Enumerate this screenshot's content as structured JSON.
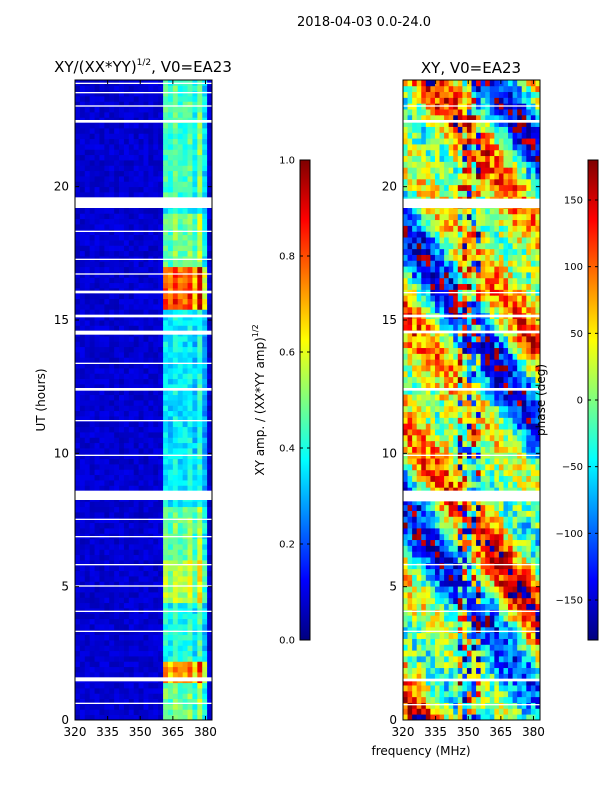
{
  "figure": {
    "suptitle": "2018-04-03 0.0-24.0",
    "xlabel": "frequency (MHz)"
  },
  "colors": {
    "jet": [
      "#00007f",
      "#0000ff",
      "#007fff",
      "#00ffff",
      "#7fff7f",
      "#ffff00",
      "#ff7f00",
      "#ff0000",
      "#7f0000"
    ],
    "gap": "#ffffff"
  },
  "chart_data": [
    {
      "type": "heatmap",
      "title": "XY/(XX*YY)",
      "title_sup": "1/2",
      "title_suffix": ", V0=EA23",
      "xlabel": "",
      "ylabel": "UT (hours)",
      "xlim": [
        320,
        383
      ],
      "ylim": [
        0,
        24
      ],
      "xticks": [
        320,
        335,
        350,
        365,
        380
      ],
      "xtick_labels": [
        "320",
        "335",
        "350",
        "365",
        "380"
      ],
      "yticks": [
        0,
        5,
        10,
        15,
        20
      ],
      "ytick_labels": [
        "0",
        "5",
        "10",
        "15",
        "20"
      ],
      "background_value": 0.05,
      "signal_band_mhz": [
        361,
        380
      ],
      "signal_channel_centers_mhz": [
        362.5,
        365.5,
        369.5,
        373.5,
        377.5
      ],
      "amplitude_ranges": [
        {
          "ut": [
            0,
            1.5
          ],
          "value": 0.45
        },
        {
          "ut": [
            1.5,
            2.2
          ],
          "value": 0.75
        },
        {
          "ut": [
            2.2,
            4.5
          ],
          "value": 0.35
        },
        {
          "ut": [
            4.5,
            6.0
          ],
          "value": 0.55
        },
        {
          "ut": [
            6.0,
            8.0
          ],
          "value": 0.45
        },
        {
          "ut": [
            8.8,
            12.5
          ],
          "value": 0.3
        },
        {
          "ut": [
            12.5,
            15.5
          ],
          "value": 0.3
        },
        {
          "ut": [
            15.5,
            17.0
          ],
          "value": 0.85
        },
        {
          "ut": [
            17.0,
            19.0
          ],
          "value": 0.45
        },
        {
          "ut": [
            19.6,
            24.0
          ],
          "value": 0.4
        }
      ],
      "gaps_ut": [
        [
          0.6,
          0.65
        ],
        [
          1.45,
          1.6
        ],
        [
          3.3,
          3.35
        ],
        [
          4.05,
          4.1
        ],
        [
          5.0,
          5.05
        ],
        [
          5.8,
          5.85
        ],
        [
          6.85,
          6.9
        ],
        [
          7.5,
          7.55
        ],
        [
          8.25,
          8.6
        ],
        [
          9.9,
          9.95
        ],
        [
          11.2,
          11.25
        ],
        [
          12.35,
          12.45
        ],
        [
          13.35,
          13.4
        ],
        [
          14.45,
          14.6
        ],
        [
          15.1,
          15.2
        ],
        [
          16.0,
          16.1
        ],
        [
          16.7,
          16.75
        ],
        [
          17.25,
          17.3
        ],
        [
          18.3,
          18.35
        ],
        [
          19.2,
          19.6
        ],
        [
          22.4,
          22.5
        ],
        [
          23.0,
          23.05
        ],
        [
          23.5,
          23.55
        ],
        [
          23.85,
          23.9
        ]
      ],
      "colorbar": {
        "label": "XY amp. / (XX*YY amp)",
        "label_sup": "1/2",
        "range": [
          0.0,
          1.0
        ],
        "ticks": [
          0.0,
          0.2,
          0.4,
          0.6,
          0.8,
          1.0
        ],
        "tick_labels": [
          "0.0",
          "0.2",
          "0.4",
          "0.6",
          "0.8",
          "1.0"
        ]
      }
    },
    {
      "type": "heatmap",
      "title": "XY, V0=EA23",
      "xlabel": "frequency (MHz)",
      "ylabel": "",
      "xlim": [
        320,
        383
      ],
      "ylim": [
        0,
        24
      ],
      "xticks": [
        320,
        335,
        350,
        365,
        380
      ],
      "xtick_labels": [
        "320",
        "335",
        "350",
        "365",
        "380"
      ],
      "yticks": [
        0,
        5,
        10,
        15,
        20
      ],
      "ytick_labels": [
        "0",
        "5",
        "10",
        "15",
        "20"
      ],
      "gaps_ut": [
        [
          0.55,
          0.6
        ],
        [
          1.45,
          1.55
        ],
        [
          3.3,
          3.35
        ],
        [
          4.05,
          4.1
        ],
        [
          5.8,
          5.85
        ],
        [
          8.2,
          8.6
        ],
        [
          9.9,
          9.95
        ],
        [
          12.35,
          12.45
        ],
        [
          14.5,
          14.6
        ],
        [
          15.1,
          15.2
        ],
        [
          16.0,
          16.05
        ],
        [
          19.2,
          19.55
        ],
        [
          22.4,
          22.5
        ],
        [
          23.0,
          23.05
        ]
      ],
      "colorbar": {
        "label": "phase (deg)",
        "range": [
          -180,
          180
        ],
        "ticks": [
          -150,
          -100,
          -50,
          0,
          50,
          100,
          150
        ],
        "tick_labels": [
          "−150",
          "−100",
          "−50",
          "0",
          "50",
          "100",
          "150"
        ]
      }
    }
  ]
}
